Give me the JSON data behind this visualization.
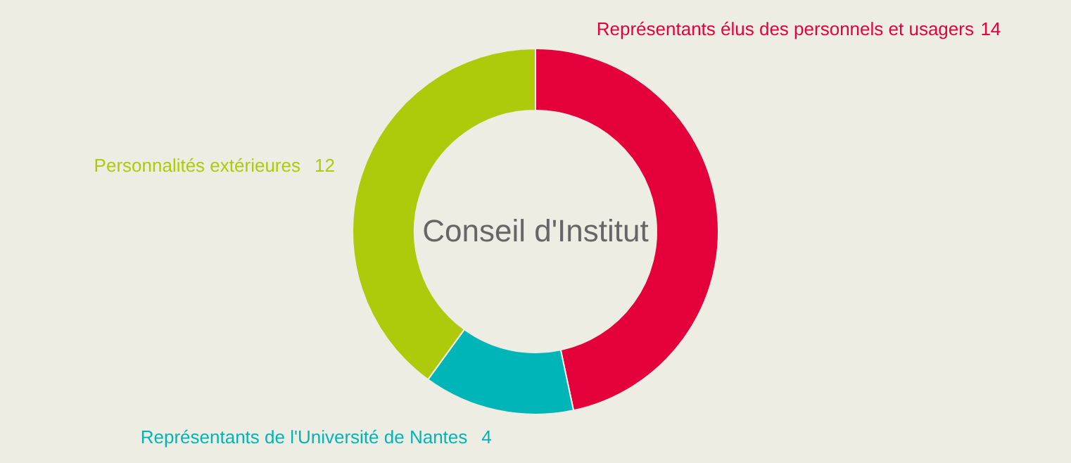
{
  "chart_data": {
    "type": "donut",
    "title": "Conseil d'Institut",
    "categories": [
      "Représentants élus des personnels et usagers",
      "Représentants de l'Université de Nantes",
      "Personnalités extérieures"
    ],
    "values": [
      14,
      4,
      12
    ],
    "colors": [
      "#e4003b",
      "#00b5b8",
      "#afca0b"
    ],
    "data_labels": true
  }
}
